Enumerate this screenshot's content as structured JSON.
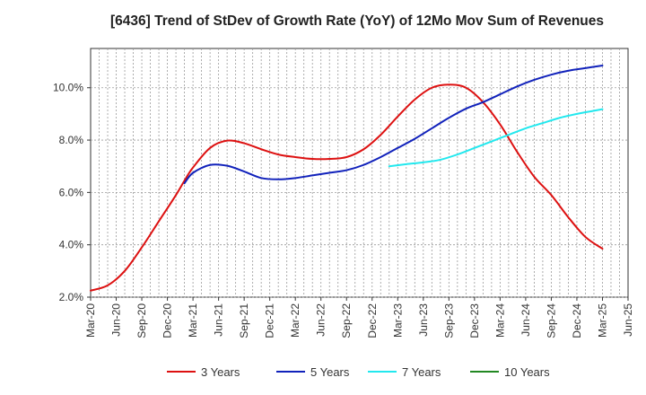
{
  "chart_data": {
    "type": "line",
    "title": "[6436]  Trend of StDev of Growth Rate (YoY) of 12Mo Mov Sum of Revenues",
    "xlabel": "",
    "ylabel": "",
    "ylim": [
      2.0,
      11.5
    ],
    "y_ticks": [
      2.0,
      4.0,
      6.0,
      8.0,
      10.0
    ],
    "y_tick_labels": [
      "2.0%",
      "4.0%",
      "6.0%",
      "8.0%",
      "10.0%"
    ],
    "x_ticks": [
      {
        "i": 0,
        "label": "Mar-20"
      },
      {
        "i": 3,
        "label": "Jun-20"
      },
      {
        "i": 6,
        "label": "Sep-20"
      },
      {
        "i": 9,
        "label": "Dec-20"
      },
      {
        "i": 12,
        "label": "Mar-21"
      },
      {
        "i": 15,
        "label": "Jun-21"
      },
      {
        "i": 18,
        "label": "Sep-21"
      },
      {
        "i": 21,
        "label": "Dec-21"
      },
      {
        "i": 24,
        "label": "Mar-22"
      },
      {
        "i": 27,
        "label": "Jun-22"
      },
      {
        "i": 30,
        "label": "Sep-22"
      },
      {
        "i": 33,
        "label": "Dec-22"
      },
      {
        "i": 36,
        "label": "Mar-23"
      },
      {
        "i": 39,
        "label": "Jun-23"
      },
      {
        "i": 42,
        "label": "Sep-23"
      },
      {
        "i": 45,
        "label": "Dec-23"
      },
      {
        "i": 48,
        "label": "Mar-24"
      },
      {
        "i": 51,
        "label": "Jun-24"
      },
      {
        "i": 54,
        "label": "Sep-24"
      },
      {
        "i": 57,
        "label": "Dec-24"
      },
      {
        "i": 60,
        "label": "Mar-25"
      },
      {
        "i": 63,
        "label": "Jun-25"
      }
    ],
    "x_max_index": 63,
    "grid": true,
    "legend_position": "bottom",
    "series": [
      {
        "name": "3 Years",
        "color": "#dd1111",
        "points": [
          [
            0,
            2.25
          ],
          [
            2,
            2.45
          ],
          [
            4,
            3.0
          ],
          [
            6,
            3.9
          ],
          [
            8,
            4.9
          ],
          [
            10,
            5.9
          ],
          [
            11,
            6.45
          ],
          [
            12,
            6.95
          ],
          [
            14,
            7.7
          ],
          [
            16,
            7.98
          ],
          [
            18,
            7.88
          ],
          [
            20,
            7.65
          ],
          [
            22,
            7.45
          ],
          [
            24,
            7.35
          ],
          [
            26,
            7.28
          ],
          [
            28,
            7.28
          ],
          [
            30,
            7.35
          ],
          [
            32,
            7.65
          ],
          [
            34,
            8.2
          ],
          [
            36,
            8.9
          ],
          [
            38,
            9.55
          ],
          [
            40,
            10.0
          ],
          [
            42,
            10.12
          ],
          [
            44,
            10.0
          ],
          [
            46,
            9.45
          ],
          [
            48,
            8.6
          ],
          [
            50,
            7.55
          ],
          [
            52,
            6.6
          ],
          [
            54,
            5.9
          ],
          [
            56,
            5.05
          ],
          [
            58,
            4.3
          ],
          [
            60,
            3.85
          ]
        ]
      },
      {
        "name": "5 Years",
        "color": "#1122bb",
        "points": [
          [
            11,
            6.35
          ],
          [
            12,
            6.75
          ],
          [
            14,
            7.05
          ],
          [
            16,
            7.02
          ],
          [
            18,
            6.8
          ],
          [
            20,
            6.55
          ],
          [
            22,
            6.5
          ],
          [
            24,
            6.55
          ],
          [
            26,
            6.65
          ],
          [
            28,
            6.75
          ],
          [
            30,
            6.85
          ],
          [
            32,
            7.05
          ],
          [
            34,
            7.35
          ],
          [
            36,
            7.7
          ],
          [
            38,
            8.05
          ],
          [
            40,
            8.45
          ],
          [
            42,
            8.85
          ],
          [
            44,
            9.2
          ],
          [
            46,
            9.45
          ],
          [
            48,
            9.75
          ],
          [
            50,
            10.05
          ],
          [
            52,
            10.3
          ],
          [
            54,
            10.5
          ],
          [
            56,
            10.65
          ],
          [
            58,
            10.75
          ],
          [
            60,
            10.85
          ]
        ]
      },
      {
        "name": "7 Years",
        "color": "#22e8ee",
        "points": [
          [
            35,
            7.0
          ],
          [
            37,
            7.08
          ],
          [
            39,
            7.15
          ],
          [
            41,
            7.25
          ],
          [
            43,
            7.45
          ],
          [
            45,
            7.7
          ],
          [
            47,
            7.95
          ],
          [
            49,
            8.2
          ],
          [
            51,
            8.45
          ],
          [
            53,
            8.65
          ],
          [
            55,
            8.85
          ],
          [
            57,
            9.0
          ],
          [
            59,
            9.12
          ],
          [
            60,
            9.18
          ]
        ]
      },
      {
        "name": "10 Years",
        "color": "#228822",
        "points": []
      }
    ]
  }
}
